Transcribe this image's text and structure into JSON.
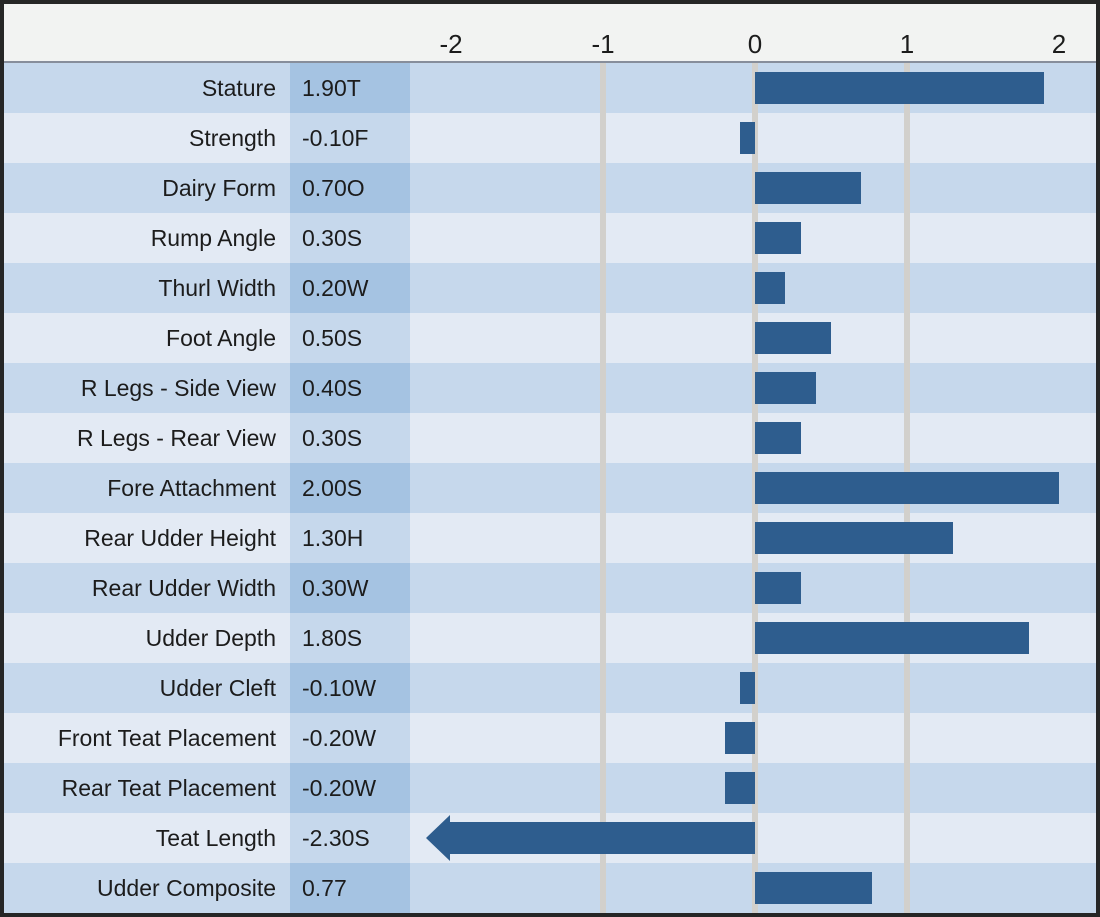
{
  "chart_data": {
    "type": "bar",
    "orientation": "horizontal",
    "title": "",
    "xlabel": "",
    "ylabel": "",
    "xlim": [
      -2.27,
      2.25
    ],
    "grid": "vertical",
    "gridlines": [
      -1,
      0,
      1
    ],
    "legend_position": "none",
    "axis_ticks": [
      {
        "label": "-2",
        "value": -2
      },
      {
        "label": "-1",
        "value": -1
      },
      {
        "label": "0",
        "value": 0
      },
      {
        "label": "1",
        "value": 1
      },
      {
        "label": "2",
        "value": 2
      }
    ],
    "categories": [
      "Stature",
      "Strength",
      "Dairy Form",
      "Rump Angle",
      "Thurl Width",
      "Foot Angle",
      "R Legs - Side View",
      "R Legs - Rear View",
      "Fore Attachment",
      "Rear Udder Height",
      "Rear Udder Width",
      "Udder Depth",
      "Udder Cleft",
      "Front Teat Placement",
      "Rear Teat Placement",
      "Teat Length",
      "Udder Composite"
    ],
    "values": [
      1.9,
      -0.1,
      0.7,
      0.3,
      0.2,
      0.5,
      0.4,
      0.3,
      2.0,
      1.3,
      0.3,
      1.8,
      -0.1,
      -0.2,
      -0.2,
      -2.3,
      0.77
    ],
    "rows": [
      {
        "trait": "Stature",
        "value_label": "1.90T",
        "value": 1.9
      },
      {
        "trait": "Strength",
        "value_label": "-0.10F",
        "value": -0.1
      },
      {
        "trait": "Dairy Form",
        "value_label": "0.70O",
        "value": 0.7
      },
      {
        "trait": "Rump Angle",
        "value_label": "0.30S",
        "value": 0.3
      },
      {
        "trait": "Thurl Width",
        "value_label": "0.20W",
        "value": 0.2
      },
      {
        "trait": "Foot Angle",
        "value_label": "0.50S",
        "value": 0.5
      },
      {
        "trait": "R Legs - Side View",
        "value_label": "0.40S",
        "value": 0.4
      },
      {
        "trait": "R Legs - Rear View",
        "value_label": "0.30S",
        "value": 0.3
      },
      {
        "trait": "Fore Attachment",
        "value_label": "2.00S",
        "value": 2.0
      },
      {
        "trait": "Rear Udder Height",
        "value_label": "1.30H",
        "value": 1.3
      },
      {
        "trait": "Rear Udder Width",
        "value_label": "0.30W",
        "value": 0.3
      },
      {
        "trait": "Udder Depth",
        "value_label": "1.80S",
        "value": 1.8
      },
      {
        "trait": "Udder Cleft",
        "value_label": "-0.10W",
        "value": -0.1
      },
      {
        "trait": "Front Teat Placement",
        "value_label": "-0.20W",
        "value": -0.2
      },
      {
        "trait": "Rear Teat Placement",
        "value_label": "-0.20W",
        "value": -0.2
      },
      {
        "trait": "Teat Length",
        "value_label": "-2.30S",
        "value": -2.3,
        "off_scale": true
      },
      {
        "trait": "Udder Composite",
        "value_label": "0.77",
        "value": 0.77
      }
    ]
  },
  "colors": {
    "bar": "#2e5d8e",
    "row_dark": "#c6d8ec",
    "row_light": "#e3eaf4",
    "value_cell_dark": "#a5c3e2",
    "value_cell_light": "#c6d8ec",
    "gridline": "#d2d0cc",
    "header_bg": "#f2f3f2",
    "header_rule": "#878e9b",
    "frame_border": "#262626",
    "text": "#1c1c1c"
  }
}
